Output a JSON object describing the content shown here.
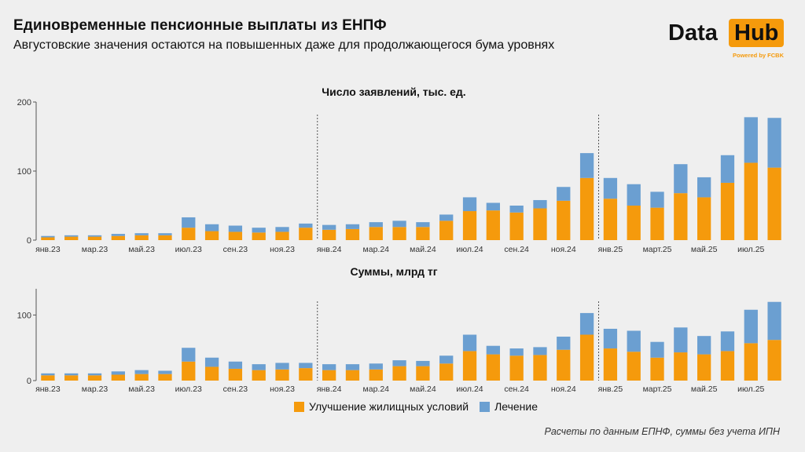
{
  "title": "Единовременные пенсионные выплаты из ЕНПФ",
  "subtitle": "Августовские значения остаются на повышенных даже для продолжающегося бума уровнях",
  "logo": {
    "part1": "Data",
    "part2": "Hub",
    "powered": "Powered by FCBK"
  },
  "legend": [
    {
      "label": "Улучшение жилищных условий",
      "color": "#f59a0c"
    },
    {
      "label": "Лечение",
      "color": "#6b9fd1"
    }
  ],
  "note": "Расчеты по данным ЕПНФ, суммы без учета ИПН",
  "colors": {
    "housing": "#f59a0c",
    "treatment": "#6b9fd1",
    "axis": "#555555",
    "divider": "#555555"
  },
  "chart_data": [
    {
      "type": "bar",
      "stacked": true,
      "title": "Число заявлений, тыс. ед.",
      "ylim": [
        0,
        200
      ],
      "yticks": [
        0,
        100,
        200
      ],
      "tick_labels": [
        "янв.23",
        "мар.23",
        "май.23",
        "июл.23",
        "сен.23",
        "ноя.23",
        "янв.24",
        "мар.24",
        "май.24",
        "июл.24",
        "сен.24",
        "ноя.24",
        "янв.25",
        "март.25",
        "май.25",
        "июл.25"
      ],
      "series": [
        {
          "name": "Улучшение жилищных условий",
          "values": [
            4,
            5,
            5,
            6,
            7,
            7,
            18,
            13,
            12,
            11,
            12,
            18,
            15,
            16,
            19,
            19,
            19,
            28,
            42,
            43,
            40,
            46,
            57,
            90,
            60,
            50,
            47,
            68,
            62,
            83,
            112,
            105
          ]
        },
        {
          "name": "Лечение",
          "values": [
            2,
            2,
            2,
            3,
            3,
            3,
            15,
            10,
            9,
            7,
            7,
            6,
            7,
            7,
            7,
            9,
            7,
            9,
            20,
            11,
            10,
            12,
            20,
            36,
            30,
            31,
            23,
            42,
            29,
            40,
            66,
            72
          ]
        }
      ]
    },
    {
      "type": "bar",
      "stacked": true,
      "title": "Суммы, млрд тг",
      "ylim": [
        0,
        140
      ],
      "yticks": [
        0,
        100
      ],
      "tick_labels": [
        "янв.23",
        "мар.23",
        "май.23",
        "июл.23",
        "сен.23",
        "ноя.23",
        "янв.24",
        "мар.24",
        "май.24",
        "июл.24",
        "сен.24",
        "ноя.24",
        "янв.25",
        "март.25",
        "май.25",
        "июл.25"
      ],
      "series": [
        {
          "name": "Улучшение жилищных условий",
          "values": [
            8,
            8,
            8,
            9,
            10,
            10,
            29,
            21,
            18,
            16,
            17,
            19,
            16,
            16,
            17,
            22,
            22,
            26,
            45,
            40,
            38,
            39,
            47,
            70,
            49,
            44,
            35,
            43,
            40,
            45,
            57,
            62
          ]
        },
        {
          "name": "Лечение",
          "values": [
            3,
            3,
            3,
            5,
            6,
            5,
            21,
            14,
            11,
            9,
            10,
            8,
            9,
            9,
            9,
            9,
            8,
            12,
            25,
            13,
            11,
            12,
            20,
            33,
            30,
            32,
            24,
            38,
            28,
            30,
            51,
            58
          ]
        }
      ]
    }
  ]
}
